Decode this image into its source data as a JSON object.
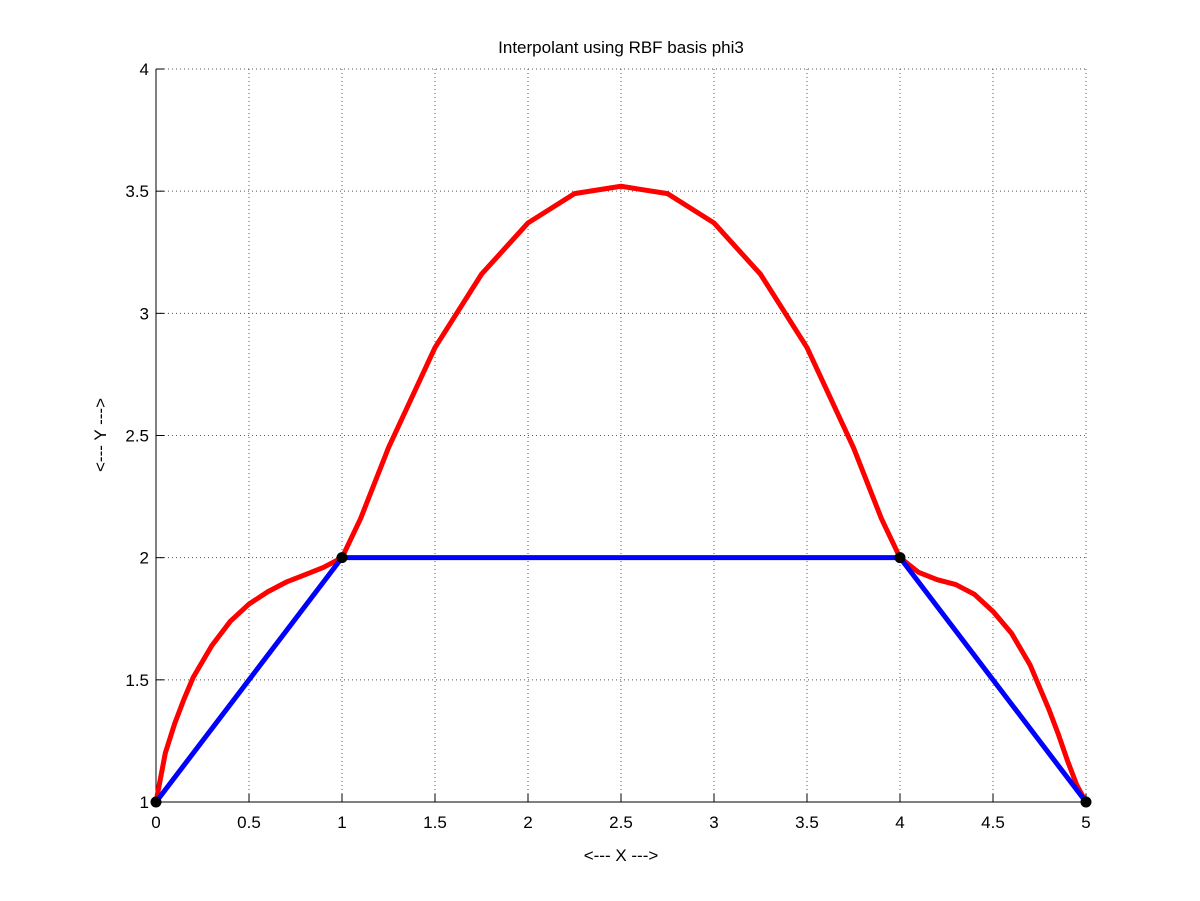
{
  "chart_data": {
    "type": "line",
    "title": "Interpolant using RBF basis phi3",
    "xlabel": "<--- X --->",
    "ylabel": "<--- Y --->",
    "xlim": [
      0,
      5
    ],
    "ylim": [
      1,
      4
    ],
    "xticks": [
      0,
      0.5,
      1,
      1.5,
      2,
      2.5,
      3,
      3.5,
      4,
      4.5,
      5
    ],
    "xtick_labels": [
      "0",
      "0.5",
      "1",
      "1.5",
      "2",
      "2.5",
      "3",
      "3.5",
      "4",
      "4.5",
      "5"
    ],
    "yticks": [
      1,
      1.5,
      2,
      2.5,
      3,
      3.5,
      4
    ],
    "ytick_labels": [
      "1",
      "1.5",
      "2",
      "2.5",
      "3",
      "3.5",
      "4"
    ],
    "grid": true,
    "colors": {
      "interpolant": "#ff0000",
      "piecewise": "#0000ff",
      "nodes": "#000000",
      "grid": "#555555",
      "axes": "#000000"
    },
    "series": [
      {
        "id": "rbf-interpolant",
        "color": "#ff0000",
        "x": [
          0,
          0.05,
          0.1,
          0.15,
          0.2,
          0.3,
          0.4,
          0.5,
          0.6,
          0.7,
          0.8,
          0.9,
          1.0,
          1.1,
          1.25,
          1.5,
          1.75,
          2.0,
          2.25,
          2.5,
          2.75,
          3.0,
          3.25,
          3.5,
          3.75,
          3.9,
          4.0,
          4.1,
          4.2,
          4.3,
          4.4,
          4.5,
          4.6,
          4.7,
          4.8,
          4.85,
          4.9,
          4.95,
          5.0
        ],
        "y": [
          1.0,
          1.2,
          1.32,
          1.42,
          1.51,
          1.64,
          1.74,
          1.81,
          1.86,
          1.9,
          1.93,
          1.96,
          2.0,
          2.16,
          2.45,
          2.86,
          3.16,
          3.37,
          3.49,
          3.52,
          3.49,
          3.37,
          3.16,
          2.86,
          2.45,
          2.16,
          2.0,
          1.94,
          1.91,
          1.89,
          1.85,
          1.78,
          1.69,
          1.56,
          1.38,
          1.28,
          1.17,
          1.07,
          1.0
        ]
      },
      {
        "id": "piecewise-linear",
        "color": "#0000ff",
        "x": [
          0,
          1,
          4,
          5
        ],
        "y": [
          1,
          2,
          2,
          1
        ]
      }
    ],
    "points": {
      "x": [
        0,
        1,
        4,
        5
      ],
      "y": [
        1,
        2,
        2,
        1
      ],
      "color": "#000000"
    }
  }
}
